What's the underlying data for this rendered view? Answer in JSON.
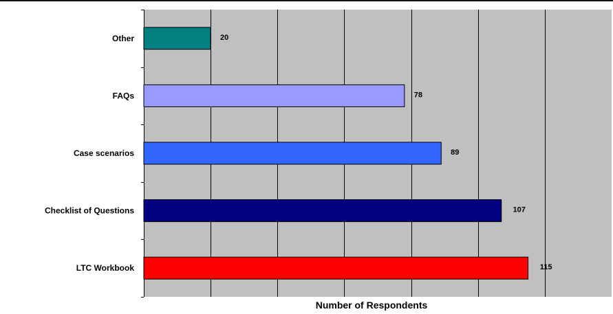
{
  "chart_data": {
    "type": "bar",
    "orientation": "horizontal",
    "categories": [
      "Other",
      "FAQs",
      "Case scenarios",
      "Checklist of Questions",
      "LTC Workbook"
    ],
    "values": [
      20,
      78,
      89,
      107,
      115
    ],
    "colors": [
      "#008080",
      "#9999ff",
      "#3366ff",
      "#000080",
      "#ff0000"
    ],
    "data_labels": [
      "20",
      "78",
      "89",
      "107",
      "115"
    ],
    "title": "",
    "xlabel": "Number of Respondents",
    "ylabel": "",
    "xlim": [
      0,
      140
    ],
    "grid_step": 20,
    "grid": true,
    "plot_background": "#c0c0c0",
    "legend": "none"
  }
}
